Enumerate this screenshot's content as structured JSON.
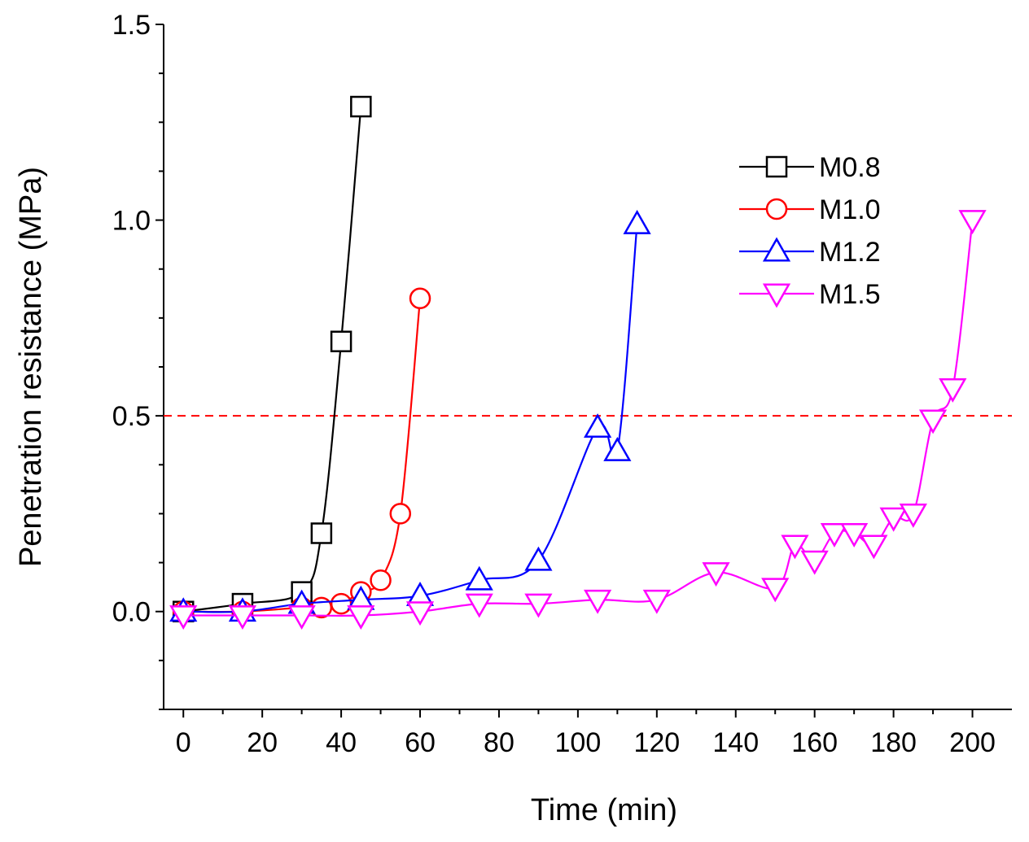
{
  "chart_data": {
    "type": "line",
    "title": "",
    "xlabel": "Time (min)",
    "ylabel": "Penetration resistance (MPa)",
    "xlim": [
      -5,
      210
    ],
    "ylim": [
      -0.25,
      1.5
    ],
    "xticks": [
      0,
      20,
      40,
      60,
      80,
      100,
      120,
      140,
      160,
      180,
      200
    ],
    "xtick_labels": [
      "0",
      "20",
      "40",
      "60",
      "80",
      "100",
      "120",
      "140",
      "160",
      "180",
      "200"
    ],
    "yticks": [
      0.0,
      0.5,
      1.0,
      1.5
    ],
    "ytick_labels": [
      "0.0",
      "0.5",
      "1.0",
      "1.5"
    ],
    "reference_line": {
      "y": 0.5,
      "color": "#ff0000",
      "style": "dashed"
    },
    "legend_position": "top-right",
    "series": [
      {
        "name": "M0.8",
        "color": "#000000",
        "marker": "square",
        "x": [
          0,
          15,
          30,
          35,
          40,
          45
        ],
        "y": [
          0.0,
          0.02,
          0.05,
          0.2,
          0.69,
          1.29
        ]
      },
      {
        "name": "M1.0",
        "color": "#ff0000",
        "marker": "circle",
        "x": [
          0,
          15,
          30,
          35,
          40,
          45,
          50,
          55,
          60
        ],
        "y": [
          0.0,
          0.0,
          0.01,
          0.01,
          0.02,
          0.05,
          0.08,
          0.25,
          0.8
        ]
      },
      {
        "name": "M1.2",
        "color": "#0000ff",
        "marker": "triangle-up",
        "x": [
          0,
          15,
          30,
          45,
          60,
          75,
          90,
          105,
          110,
          115
        ],
        "y": [
          0.0,
          0.0,
          0.02,
          0.03,
          0.04,
          0.08,
          0.13,
          0.47,
          0.41,
          0.99
        ]
      },
      {
        "name": "M1.5",
        "color": "#ff00ff",
        "marker": "triangle-down",
        "x": [
          0,
          15,
          30,
          45,
          60,
          75,
          90,
          105,
          120,
          135,
          150,
          155,
          160,
          165,
          170,
          175,
          180,
          185,
          190,
          195,
          200
        ],
        "y": [
          -0.01,
          -0.01,
          -0.01,
          -0.01,
          0.0,
          0.02,
          0.02,
          0.03,
          0.03,
          0.1,
          0.06,
          0.17,
          0.13,
          0.2,
          0.2,
          0.17,
          0.24,
          0.25,
          0.49,
          0.57,
          1.0
        ]
      }
    ]
  }
}
